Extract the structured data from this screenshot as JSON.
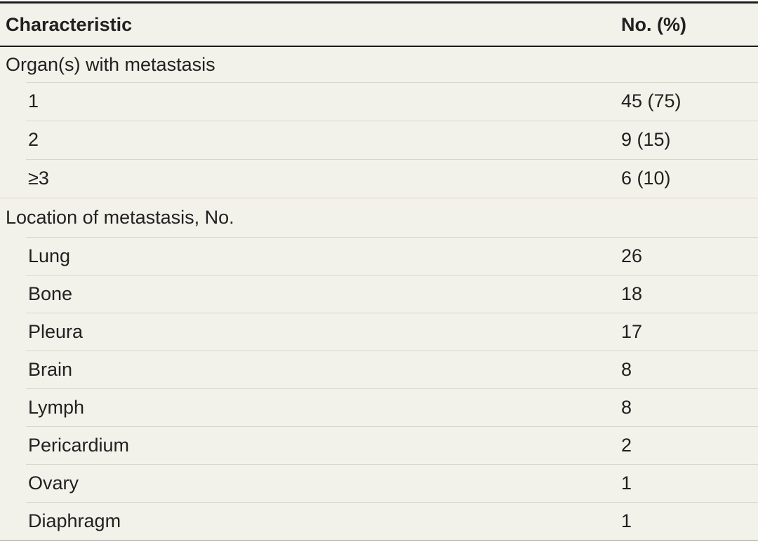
{
  "table": {
    "columns": {
      "characteristic": "Characteristic",
      "value": "No. (%)"
    },
    "sections": [
      {
        "header": "Organ(s) with metastasis",
        "rows": [
          {
            "label": "1",
            "value": "45 (75)"
          },
          {
            "label": "2",
            "value": "9 (15)"
          },
          {
            "label": "≥3",
            "value": "6 (10)"
          }
        ]
      },
      {
        "header": "Location of metastasis, No.",
        "rows": [
          {
            "label": "Lung",
            "value": "26"
          },
          {
            "label": "Bone",
            "value": "18"
          },
          {
            "label": "Pleura",
            "value": "17"
          },
          {
            "label": "Brain",
            "value": "8"
          },
          {
            "label": "Lymph",
            "value": "8"
          },
          {
            "label": "Pericardium",
            "value": "2"
          },
          {
            "label": "Ovary",
            "value": "1"
          },
          {
            "label": "Diaphragm",
            "value": "1"
          }
        ]
      }
    ],
    "colors": {
      "table_background": "#f3f2ea",
      "heavy_rule": "#1b1b1b",
      "light_rule": "#d8d6ca",
      "text": "#212121"
    }
  }
}
